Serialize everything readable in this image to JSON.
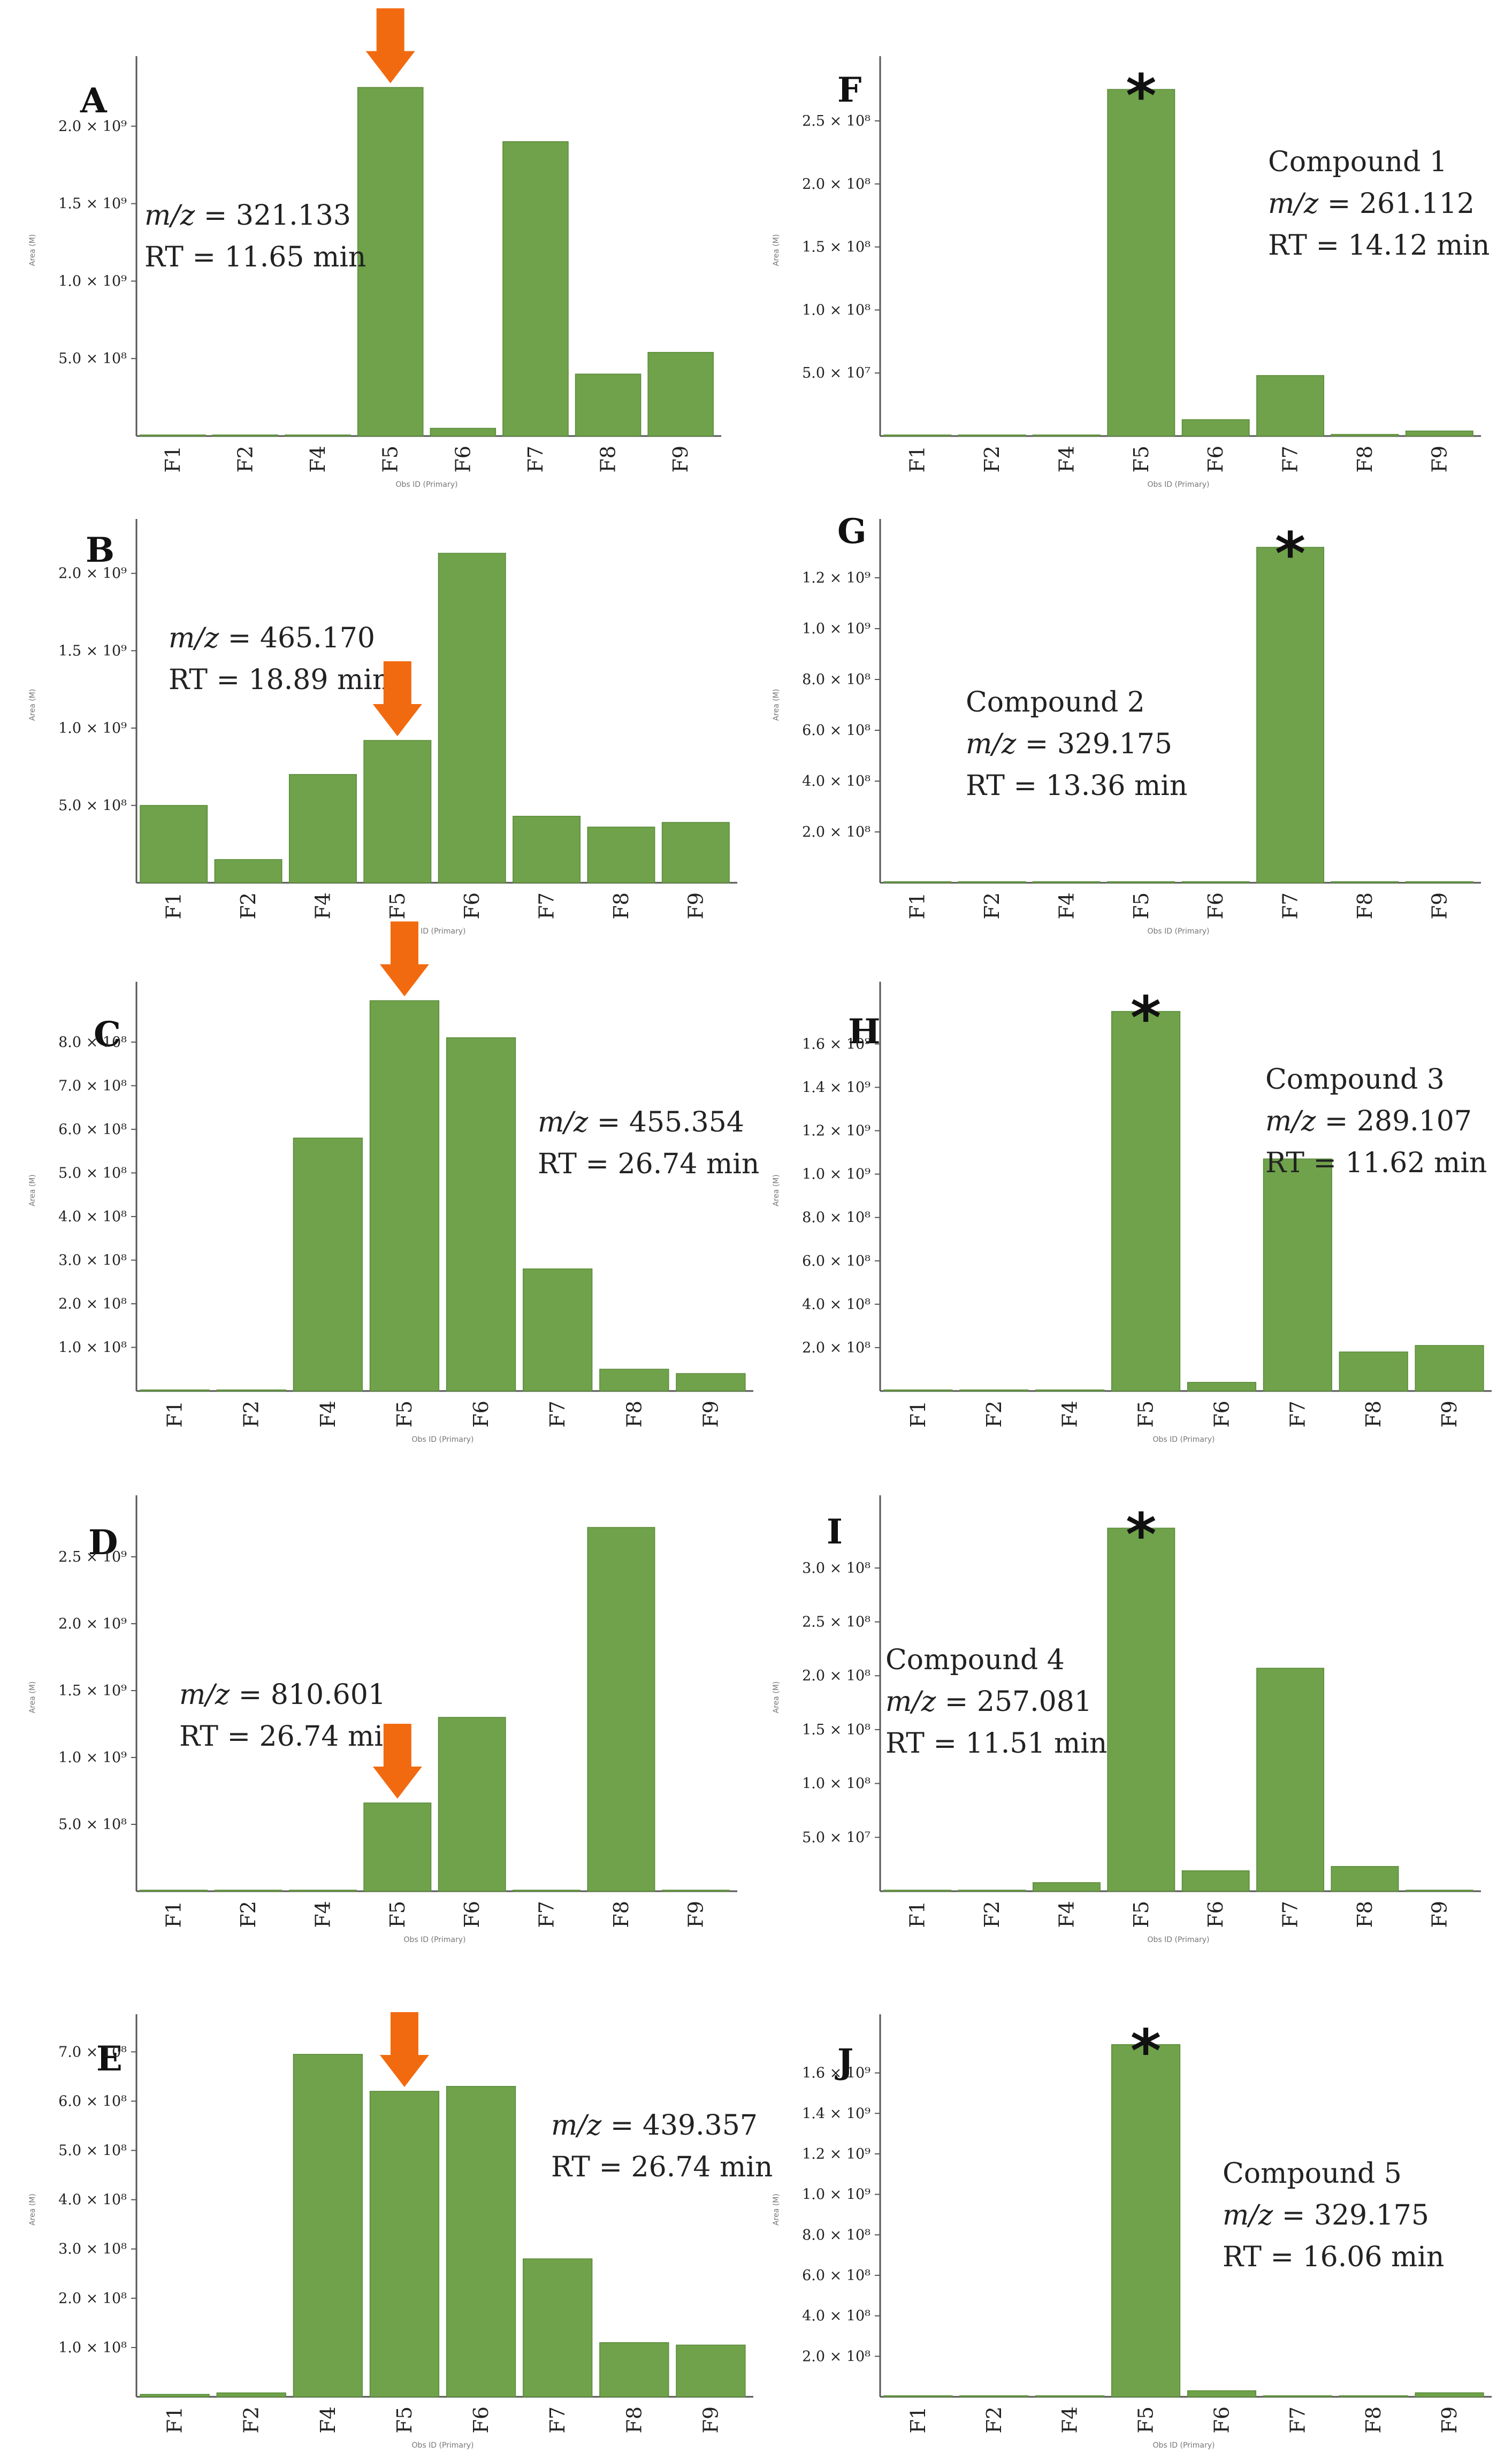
{
  "chart_data": [
    {
      "type": "bar",
      "panel": "A",
      "categories": [
        "F1",
        "F2",
        "F4",
        "F5",
        "F6",
        "F7",
        "F8",
        "F9"
      ],
      "values": [
        0,
        0,
        0,
        2250000000.0,
        50000000.0,
        1900000000.0,
        400000000.0,
        540000000.0
      ],
      "ylim": [
        0,
        2400000000.0
      ],
      "yticks": [
        {
          "v": 500000000.0,
          "label": "5.0 × 10⁸"
        },
        {
          "v": 1000000000.0,
          "label": "1.0 × 10⁹"
        },
        {
          "v": 1500000000.0,
          "label": "1.5 × 10⁹"
        },
        {
          "v": 2000000000.0,
          "label": "2.0 × 10⁹"
        }
      ],
      "ylabel": "Area (M)",
      "xlabel": "Obs ID (Primary)",
      "annotation": [
        "m/z = 321.133",
        "RT  = 11.65 min"
      ],
      "marker": {
        "type": "arrow",
        "category": "F5"
      }
    },
    {
      "type": "bar",
      "panel": "B",
      "categories": [
        "F1",
        "F2",
        "F4",
        "F5",
        "F6",
        "F7",
        "F8",
        "F9"
      ],
      "values": [
        500000000.0,
        150000000.0,
        700000000.0,
        920000000.0,
        2130000000.0,
        430000000.0,
        360000000.0,
        390000000.0
      ],
      "ylim": [
        0,
        2300000000.0
      ],
      "yticks": [
        {
          "v": 500000000.0,
          "label": "5.0 × 10⁸"
        },
        {
          "v": 1000000000.0,
          "label": "1.0 × 10⁹"
        },
        {
          "v": 1500000000.0,
          "label": "1.5 × 10⁹"
        },
        {
          "v": 2000000000.0,
          "label": "2.0 × 10⁹"
        }
      ],
      "ylabel": "Area (M)",
      "xlabel": "Obs ID (Primary)",
      "annotation": [
        "m/z = 465.170",
        "RT  = 18.89 min"
      ],
      "marker": {
        "type": "arrow",
        "category": "F5"
      }
    },
    {
      "type": "bar",
      "panel": "C",
      "categories": [
        "F1",
        "F2",
        "F4",
        "F5",
        "F6",
        "F7",
        "F8",
        "F9"
      ],
      "values": [
        0,
        0,
        580000000.0,
        895000000.0,
        810000000.0,
        280000000.0,
        50000000.0,
        40000000.0
      ],
      "ylim": [
        0,
        920000000.0
      ],
      "yticks": [
        {
          "v": 100000000.0,
          "label": "1.0 × 10⁸"
        },
        {
          "v": 200000000.0,
          "label": "2.0 × 10⁸"
        },
        {
          "v": 300000000.0,
          "label": "3.0 × 10⁸"
        },
        {
          "v": 400000000.0,
          "label": "4.0 × 10⁸"
        },
        {
          "v": 500000000.0,
          "label": "5.0 × 10⁸"
        },
        {
          "v": 600000000.0,
          "label": "6.0 × 10⁸"
        },
        {
          "v": 700000000.0,
          "label": "7.0 × 10⁸"
        },
        {
          "v": 800000000.0,
          "label": "8.0 × 10⁸"
        }
      ],
      "ylabel": "Area (M)",
      "xlabel": "Obs ID (Primary)",
      "annotation": [
        "m/z = 455.354",
        "RT  = 26.74 min"
      ],
      "marker": {
        "type": "arrow",
        "category": "F5"
      }
    },
    {
      "type": "bar",
      "panel": "D",
      "categories": [
        "F1",
        "F2",
        "F4",
        "F5",
        "F6",
        "F7",
        "F8",
        "F9"
      ],
      "values": [
        0,
        0,
        0,
        660000000.0,
        1300000000.0,
        0,
        2720000000.0,
        0
      ],
      "ylim": [
        0,
        2900000000.0
      ],
      "yticks": [
        {
          "v": 500000000.0,
          "label": "5.0 × 10⁸"
        },
        {
          "v": 1000000000.0,
          "label": "1.0 × 10⁹"
        },
        {
          "v": 1500000000.0,
          "label": "1.5 × 10⁹"
        },
        {
          "v": 2000000000.0,
          "label": "2.0 × 10⁹"
        },
        {
          "v": 2500000000.0,
          "label": "2.5 × 10⁹"
        }
      ],
      "ylabel": "Area (M)",
      "xlabel": "Obs ID (Primary)",
      "annotation": [
        "m/z = 810.601",
        "RT  = 26.74 min"
      ],
      "marker": {
        "type": "arrow",
        "category": "F5"
      }
    },
    {
      "type": "bar",
      "panel": "E",
      "categories": [
        "F1",
        "F2",
        "F4",
        "F5",
        "F6",
        "F7",
        "F8",
        "F9"
      ],
      "values": [
        5000000.0,
        8000000.0,
        695000000.0,
        620000000.0,
        630000000.0,
        280000000.0,
        110000000.0,
        105000000.0
      ],
      "ylim": [
        0,
        760000000.0
      ],
      "yticks": [
        {
          "v": 100000000.0,
          "label": "1.0 × 10⁸"
        },
        {
          "v": 200000000.0,
          "label": "2.0 × 10⁸"
        },
        {
          "v": 300000000.0,
          "label": "3.0 × 10⁸"
        },
        {
          "v": 400000000.0,
          "label": "4.0 × 10⁸"
        },
        {
          "v": 500000000.0,
          "label": "5.0 × 10⁸"
        },
        {
          "v": 600000000.0,
          "label": "6.0 × 10⁸"
        },
        {
          "v": 700000000.0,
          "label": "7.0 × 10⁸"
        }
      ],
      "ylabel": "Area (M)",
      "xlabel": "Obs ID (Primary)",
      "annotation": [
        "m/z = 439.357",
        "RT  = 26.74 min"
      ],
      "marker": {
        "type": "arrow",
        "category": "F5"
      }
    },
    {
      "type": "bar",
      "panel": "F",
      "categories": [
        "F1",
        "F2",
        "F4",
        "F5",
        "F6",
        "F7",
        "F8",
        "F9"
      ],
      "values": [
        0,
        0,
        0,
        275000000.0,
        13000000.0,
        48000000.0,
        1000000.0,
        4000000.0
      ],
      "ylim": [
        0,
        295000000.0
      ],
      "yticks": [
        {
          "v": 50000000.0,
          "label": "5.0 × 10⁷"
        },
        {
          "v": 100000000.0,
          "label": "1.0 × 10⁸"
        },
        {
          "v": 150000000.0,
          "label": "1.5 × 10⁸"
        },
        {
          "v": 200000000.0,
          "label": "2.0 × 10⁸"
        },
        {
          "v": 250000000.0,
          "label": "2.5 × 10⁸"
        }
      ],
      "ylabel": "Area (M)",
      "xlabel": "Obs ID (Primary)",
      "annotation": [
        "Compound 1",
        "m/z = 261.112",
        "RT  = 14.12 min"
      ],
      "marker": {
        "type": "star",
        "category": "F5"
      }
    },
    {
      "type": "bar",
      "panel": "G",
      "categories": [
        "F1",
        "F2",
        "F4",
        "F5",
        "F6",
        "F7",
        "F8",
        "F9"
      ],
      "values": [
        0,
        0,
        0,
        0,
        0,
        1320000000.0,
        0,
        0
      ],
      "ylim": [
        0,
        1400000000.0
      ],
      "yticks": [
        {
          "v": 200000000.0,
          "label": "2.0 × 10⁸"
        },
        {
          "v": 400000000.0,
          "label": "4.0 × 10⁸"
        },
        {
          "v": 600000000.0,
          "label": "6.0 × 10⁸"
        },
        {
          "v": 800000000.0,
          "label": "8.0 × 10⁸"
        },
        {
          "v": 1000000000.0,
          "label": "1.0 × 10⁹"
        },
        {
          "v": 1200000000.0,
          "label": "1.2 × 10⁹"
        }
      ],
      "ylabel": "Area (M)",
      "xlabel": "Obs ID (Primary)",
      "annotation": [
        "Compound 2",
        "m/z = 329.175",
        "RT  = 13.36 min"
      ],
      "marker": {
        "type": "star",
        "category": "F7"
      }
    },
    {
      "type": "bar",
      "panel": "H",
      "categories": [
        "F1",
        "F2",
        "F4",
        "F5",
        "F6",
        "F7",
        "F8",
        "F9"
      ],
      "values": [
        0,
        0,
        0,
        1750000000.0,
        40000000.0,
        1070000000.0,
        180000000.0,
        210000000.0
      ],
      "ylim": [
        0,
        1850000000.0
      ],
      "yticks": [
        {
          "v": 200000000.0,
          "label": "2.0 × 10⁸"
        },
        {
          "v": 400000000.0,
          "label": "4.0 × 10⁸"
        },
        {
          "v": 600000000.0,
          "label": "6.0 × 10⁸"
        },
        {
          "v": 800000000.0,
          "label": "8.0 × 10⁸"
        },
        {
          "v": 1000000000.0,
          "label": "1.0 × 10⁹"
        },
        {
          "v": 1200000000.0,
          "label": "1.2 × 10⁹"
        },
        {
          "v": 1400000000.0,
          "label": "1.4 × 10⁹"
        },
        {
          "v": 1600000000.0,
          "label": "1.6 × 10⁹"
        }
      ],
      "ylabel": "Area (M)",
      "xlabel": "Obs ID (Primary)",
      "annotation": [
        "Compound 3",
        "m/z = 289.107",
        "RT  = 11.62 min"
      ],
      "marker": {
        "type": "star",
        "category": "F5"
      }
    },
    {
      "type": "bar",
      "panel": "I",
      "categories": [
        "F1",
        "F2",
        "F4",
        "F5",
        "F6",
        "F7",
        "F8",
        "F9"
      ],
      "values": [
        0,
        0,
        8000000.0,
        337000000.0,
        19000000.0,
        207000000.0,
        23000000.0,
        0
      ],
      "ylim": [
        0,
        360000000.0
      ],
      "yticks": [
        {
          "v": 50000000.0,
          "label": "5.0 × 10⁷"
        },
        {
          "v": 100000000.0,
          "label": "1.0 × 10⁸"
        },
        {
          "v": 150000000.0,
          "label": "1.5 × 10⁸"
        },
        {
          "v": 200000000.0,
          "label": "2.0 × 10⁸"
        },
        {
          "v": 250000000.0,
          "label": "2.5 × 10⁸"
        },
        {
          "v": 300000000.0,
          "label": "3.0 × 10⁸"
        }
      ],
      "ylabel": "Area (M)",
      "xlabel": "Obs ID (Primary)",
      "annotation": [
        "Compound 4",
        "m/z = 257.081",
        "RT  = 11.51 min"
      ],
      "marker": {
        "type": "star",
        "category": "F5"
      }
    },
    {
      "type": "bar",
      "panel": "J",
      "categories": [
        "F1",
        "F2",
        "F4",
        "F5",
        "F6",
        "F7",
        "F8",
        "F9"
      ],
      "values": [
        0,
        0,
        0,
        1740000000.0,
        30000000.0,
        0,
        0,
        20000000.0
      ],
      "ylim": [
        0,
        1850000000.0
      ],
      "yticks": [
        {
          "v": 200000000.0,
          "label": "2.0 × 10⁸"
        },
        {
          "v": 400000000.0,
          "label": "4.0 × 10⁸"
        },
        {
          "v": 600000000.0,
          "label": "6.0 × 10⁸"
        },
        {
          "v": 800000000.0,
          "label": "8.0 × 10⁸"
        },
        {
          "v": 1000000000.0,
          "label": "1.0 × 10⁹"
        },
        {
          "v": 1200000000.0,
          "label": "1.2 × 10⁹"
        },
        {
          "v": 1400000000.0,
          "label": "1.4 × 10⁹"
        },
        {
          "v": 1600000000.0,
          "label": "1.6 × 10⁹"
        }
      ],
      "ylabel": "Area (M)",
      "xlabel": "Obs ID (Primary)",
      "annotation": [
        "Compound 5",
        "m/z = 329.175",
        "RT  = 16.06 min"
      ],
      "marker": {
        "type": "star",
        "category": "F5"
      }
    }
  ],
  "colors": {
    "bar": "#6fa24a",
    "bar_edge": "#5a8a3a",
    "arrow": "#f26a10",
    "axis": "#555555",
    "text": "#222222"
  }
}
